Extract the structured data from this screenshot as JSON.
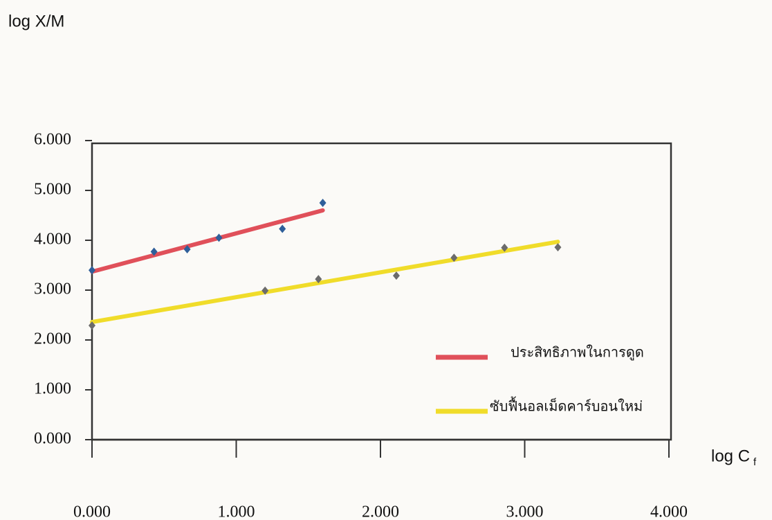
{
  "chart_data": {
    "type": "scatter",
    "y_label": "log X/M",
    "x_label": "log C",
    "x_label_subscript": "f",
    "xlim": [
      0,
      4
    ],
    "ylim": [
      0,
      6
    ],
    "xticks": [
      {
        "value": 0,
        "label": "0.000"
      },
      {
        "value": 1,
        "label": "1.000"
      },
      {
        "value": 2,
        "label": "2.000"
      },
      {
        "value": 3,
        "label": "3.000"
      },
      {
        "value": 4,
        "label": "4.000"
      }
    ],
    "yticks": [
      {
        "value": 0,
        "label": "0.000"
      },
      {
        "value": 1,
        "label": "1.000"
      },
      {
        "value": 2,
        "label": "2.000"
      },
      {
        "value": 3,
        "label": "3.000"
      },
      {
        "value": 4,
        "label": "4.000"
      },
      {
        "value": 5,
        "label": "5.000"
      },
      {
        "value": 6,
        "label": "6.000"
      }
    ],
    "grid": false,
    "series": [
      {
        "name": "ประสิทธิภาพในการดูด",
        "color": "#e0505a",
        "marker_color": "#2f5f9a",
        "x": [
          0,
          0.43,
          0.66,
          0.88,
          1.32,
          1.6
        ],
        "values": [
          3.4,
          3.77,
          3.82,
          4.05,
          4.23,
          4.75
        ],
        "fit_x": [
          0,
          1.6
        ],
        "fit_values": [
          3.37,
          4.6
        ]
      },
      {
        "name": "ซับฟื้นอลเม็ดคาร์บอนใหม่",
        "color": "#f0dc2a",
        "marker_color": "#6b6b6b",
        "x": [
          0,
          1.2,
          1.57,
          2.11,
          2.51,
          2.86,
          3.23
        ],
        "values": [
          2.29,
          2.99,
          3.22,
          3.29,
          3.65,
          3.85,
          3.86
        ],
        "fit_x": [
          0,
          3.23
        ],
        "fit_values": [
          2.36,
          3.97
        ]
      }
    ]
  }
}
